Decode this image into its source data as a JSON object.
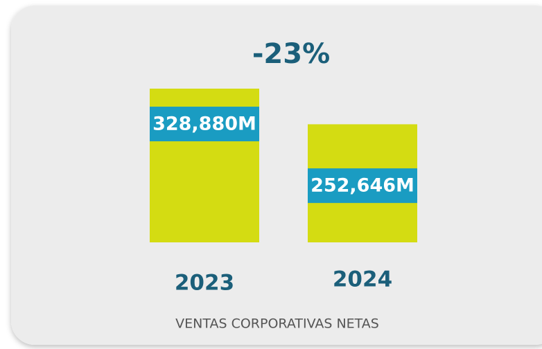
{
  "chart_data": {
    "type": "bar",
    "annotation": "-23%",
    "categories": [
      "2023",
      "2024"
    ],
    "values": [
      328880,
      252646
    ],
    "value_labels": [
      "328,880M",
      "252,646M"
    ],
    "xlabel": "VENTAS CORPORATIVAS NETAS",
    "color": "#d4dc12"
  }
}
